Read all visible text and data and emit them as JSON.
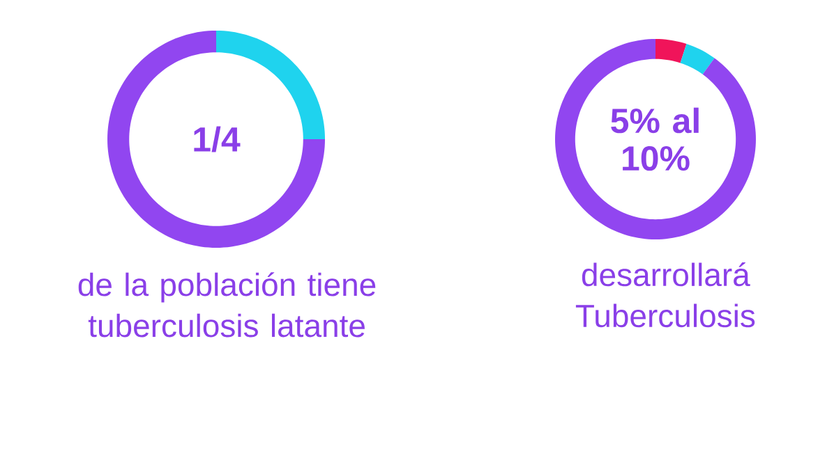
{
  "chart_data": [
    {
      "type": "donut",
      "categories": [
        null,
        null
      ],
      "values": [
        25,
        75
      ],
      "colors": [
        "#1fd3ee",
        "#9146f0"
      ],
      "annotations": [
        "1/4"
      ],
      "title": "de la población tiene tuberculosis latante"
    },
    {
      "type": "donut",
      "categories": [
        null,
        null,
        null
      ],
      "values": [
        5,
        5,
        90
      ],
      "colors": [
        "#f0145a",
        "#1fd3ee",
        "#9146f0"
      ],
      "annotations": [
        "5% al 10%"
      ],
      "title": "desarrollará Tuberculosis"
    }
  ]
}
